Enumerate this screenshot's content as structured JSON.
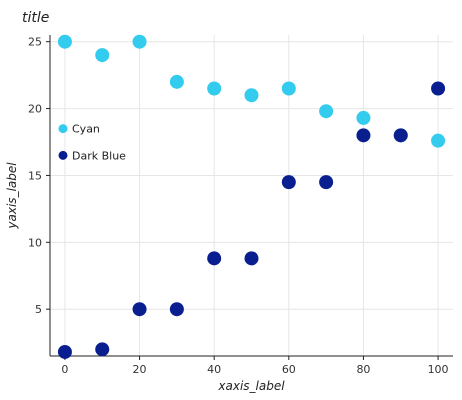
{
  "chart_data": {
    "type": "scatter",
    "title": "title",
    "xlabel": "xaxis_label",
    "ylabel": "yaxis_label",
    "xlim": [
      -4,
      104
    ],
    "ylim": [
      1.5,
      25.5
    ],
    "xticks": [
      0,
      20,
      40,
      60,
      80,
      100
    ],
    "yticks": [
      5,
      10,
      15,
      20,
      25
    ],
    "grid": true,
    "legend_position": "left",
    "series": [
      {
        "name": "Cyan",
        "color": "#33ccee",
        "points": [
          [
            0,
            25.0
          ],
          [
            10,
            24.0
          ],
          [
            20,
            25.0
          ],
          [
            30,
            22.0
          ],
          [
            40,
            21.5
          ],
          [
            50,
            21.0
          ],
          [
            60,
            21.5
          ],
          [
            70,
            19.8
          ],
          [
            80,
            19.3
          ],
          [
            90,
            18.0
          ],
          [
            100,
            17.6
          ]
        ]
      },
      {
        "name": "Dark Blue",
        "color": "#0a1f8f",
        "points": [
          [
            0,
            1.8
          ],
          [
            10,
            2.0
          ],
          [
            20,
            5.0
          ],
          [
            30,
            5.0
          ],
          [
            40,
            8.8
          ],
          [
            50,
            8.8
          ],
          [
            60,
            14.5
          ],
          [
            70,
            14.5
          ],
          [
            80,
            18.0
          ],
          [
            90,
            18.0
          ],
          [
            100,
            21.5
          ]
        ]
      }
    ]
  }
}
